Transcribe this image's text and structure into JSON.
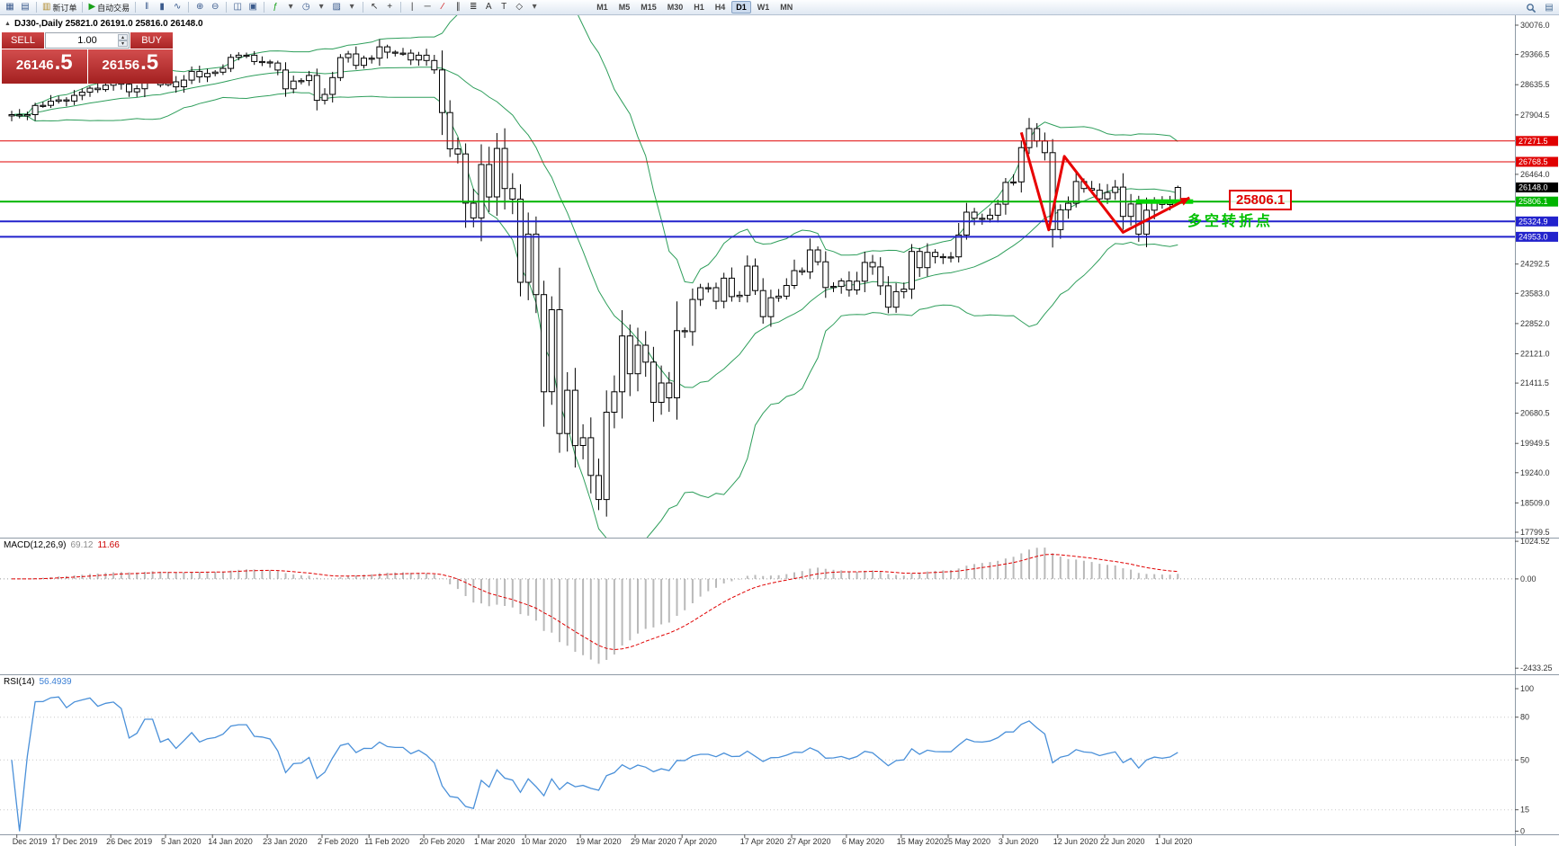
{
  "toolbar": {
    "items": [
      {
        "name": "new-chart",
        "glyph": "▦",
        "color": "#3a5a8c"
      },
      {
        "name": "chart-profiles",
        "glyph": "▤",
        "color": "#3a5a8c"
      },
      {
        "sep": true
      },
      {
        "name": "new-order",
        "glyph": "▥",
        "color": "#b0892a",
        "label": "新订单"
      },
      {
        "sep": true
      },
      {
        "name": "autotrading",
        "glyph": "▶",
        "color": "#18a018",
        "label": "自动交易"
      },
      {
        "sep": true
      },
      {
        "name": "bar-chart",
        "glyph": "‖",
        "color": "#3a5a8c"
      },
      {
        "name": "candlestick-chart",
        "glyph": "▮",
        "color": "#3a5a8c"
      },
      {
        "name": "line-chart",
        "glyph": "∿",
        "color": "#3a5a8c"
      },
      {
        "sep": true
      },
      {
        "name": "zoom-in",
        "glyph": "⊕",
        "color": "#3a5a8c"
      },
      {
        "name": "zoom-out",
        "glyph": "⊖",
        "color": "#3a5a8c"
      },
      {
        "sep": true
      },
      {
        "name": "tile-windows",
        "glyph": "◫",
        "color": "#3a5a8c"
      },
      {
        "name": "cascade-windows",
        "glyph": "▣",
        "color": "#3a5a8c"
      },
      {
        "sep": true
      },
      {
        "name": "indicators",
        "glyph": "ƒ",
        "color": "#18a018"
      },
      {
        "name": "indicators-dropdown",
        "glyph": "▾",
        "color": "#555555"
      },
      {
        "name": "periods",
        "glyph": "◷",
        "color": "#3a5a8c"
      },
      {
        "name": "periods-dropdown",
        "glyph": "▾",
        "color": "#555555"
      },
      {
        "name": "templates",
        "glyph": "▨",
        "color": "#3a5a8c"
      },
      {
        "name": "templates-dropdown",
        "glyph": "▾",
        "color": "#555555"
      },
      {
        "sep": true
      },
      {
        "name": "cursor",
        "glyph": "↖",
        "color": "#333333"
      },
      {
        "name": "crosshair",
        "glyph": "+",
        "color": "#333333"
      },
      {
        "sep": true
      },
      {
        "name": "vertical-line",
        "glyph": "|",
        "color": "#333333"
      },
      {
        "name": "horizontal-line",
        "glyph": "─",
        "color": "#333333"
      },
      {
        "name": "trendline",
        "glyph": "∕",
        "color": "#cc0000"
      },
      {
        "name": "equidistant-channel",
        "glyph": "∥",
        "color": "#333333"
      },
      {
        "name": "fibonacci-retracement",
        "glyph": "≣",
        "color": "#333333"
      },
      {
        "name": "text",
        "glyph": "A",
        "color": "#333333"
      },
      {
        "name": "text-label",
        "glyph": "T",
        "color": "#333333"
      },
      {
        "name": "arrows",
        "glyph": "◇",
        "color": "#333333"
      },
      {
        "name": "arrows-dropdown",
        "glyph": "▾",
        "color": "#555555"
      }
    ],
    "timeframes": [
      "M1",
      "M5",
      "M15",
      "M30",
      "H1",
      "H4",
      "D1",
      "W1",
      "MN"
    ],
    "active_timeframe": "D1"
  },
  "symbol_info": {
    "collapse_glyph": "▲",
    "text": "DJ30-,Daily  25821.0 26191.0 25816.0 26148.0"
  },
  "trade_panel": {
    "sell_label": "SELL",
    "buy_label": "BUY",
    "volume": "1.00",
    "spin_up_glyph": "▴",
    "spin_down_glyph": "▾",
    "sell_main": "26146",
    "sell_frac": ".5",
    "buy_main": "26156",
    "buy_frac": ".5"
  },
  "annotations": {
    "turning_point_text": "多空转折点",
    "price_callout": "25806.1",
    "zigzag": [
      [
        129,
        27480
      ],
      [
        132.5,
        25120
      ],
      [
        134.5,
        26900
      ],
      [
        142,
        25060
      ],
      [
        150.5,
        25900
      ]
    ],
    "highlight_segment": {
      "price": 25806.1,
      "from_bar": 144,
      "to_bar": 151.3
    }
  },
  "price_scale": {
    "ticks": [
      "30076.0",
      "29366.5",
      "28635.5",
      "27904.5",
      "26464.0",
      "24292.5",
      "23583.0",
      "22852.0",
      "22121.0",
      "21411.5",
      "20680.5",
      "19949.5",
      "19240.0",
      "18509.0",
      "17799.5"
    ],
    "tags": [
      {
        "value": "27271.5",
        "color": "#e00000"
      },
      {
        "value": "26768.5",
        "color": "#e00000"
      },
      {
        "value": "26148.0",
        "color": "#000000"
      },
      {
        "value": "25806.1",
        "color": "#00b400"
      },
      {
        "value": "25324.9",
        "color": "#2222cc"
      },
      {
        "value": "24953.0",
        "color": "#2222cc"
      }
    ]
  },
  "levels": [
    {
      "price": 27271.5,
      "color": "#e00000",
      "width": 1
    },
    {
      "price": 26768.5,
      "color": "#e00000",
      "width": 1
    },
    {
      "price": 25806.1,
      "color": "#00b400",
      "width": 2
    },
    {
      "price": 25324.9,
      "color": "#2222cc",
      "width": 2
    },
    {
      "price": 24953.0,
      "color": "#2222cc",
      "width": 2
    }
  ],
  "macd_panel": {
    "name": "MACD(12,26,9)",
    "main_value": "69.12",
    "signal_value": "11.66",
    "scale": [
      "1024.52",
      "0.00",
      "-2433.25"
    ],
    "scale_values": [
      1024.52,
      0,
      -2433.25
    ]
  },
  "rsi_panel": {
    "name": "RSI(14)",
    "value": "56.4939",
    "scale_values": [
      100,
      80,
      50,
      15,
      0
    ]
  },
  "date_axis": {
    "labels": [
      "Dec 2019",
      "17 Dec 2019",
      "26 Dec 2019",
      "5 Jan 2020",
      "14 Jan 2020",
      "23 Jan 2020",
      "2 Feb 2020",
      "11 Feb 2020",
      "20 Feb 2020",
      "1 Mar 2020",
      "10 Mar 2020",
      "19 Mar 2020",
      "29 Mar 2020",
      "7 Apr 2020",
      "17 Apr 2020",
      "27 Apr 2020",
      "6 May 2020",
      "15 May 2020",
      "25 May 2020",
      "3 Jun 2020",
      "12 Jun 2020",
      "22 Jun 2020",
      "1 Jul 2020"
    ],
    "bar_index": [
      1,
      6,
      13,
      20,
      26,
      33,
      40,
      46,
      53,
      60,
      66,
      73,
      80,
      86,
      94,
      100,
      107,
      114,
      120,
      127,
      134,
      140,
      147
    ]
  },
  "colors": {
    "accent_red": "#e80000",
    "band_green": "#2e9e5b",
    "highlight_green": "#00d400",
    "macd_hist": "#b9b9b9",
    "macd_signal": "#e00000",
    "rsi_line": "#4a90d9",
    "candle_stroke": "#000000"
  },
  "chart_data": {
    "type": "candlestick",
    "symbol": "DJ30-",
    "timeframe": "Daily",
    "current_bar": {
      "open": 25821.0,
      "high": 26191.0,
      "low": 25816.0,
      "close": 26148.0
    },
    "y_axis_range": [
      17799.5,
      30076.0
    ],
    "overlays": [
      "Bollinger Bands (green)"
    ],
    "indicators": [
      "MACD(12,26,9)",
      "RSI(14)"
    ],
    "closes": [
      27910,
      27881,
      27911,
      28132,
      28135,
      28235,
      28267,
      28239,
      28377,
      28455,
      28551,
      28516,
      28621,
      28676,
      28645,
      28462,
      28538,
      28869,
      28869,
      28635,
      28704,
      28583,
      28745,
      28957,
      28824,
      28907,
      28939,
      29030,
      29297,
      29348,
      29348,
      29196,
      29186,
      29160,
      28990,
      28536,
      28723,
      28734,
      28859,
      28256,
      28400,
      28808,
      29291,
      29380,
      29103,
      29277,
      29276,
      29551,
      29423,
      29398,
      29398,
      29233,
      29348,
      29220,
      28993,
      27961,
      27081,
      26958,
      25767,
      25409,
      26703,
      25917,
      27091,
      26121,
      25865,
      23851,
      25018,
      23553,
      21201,
      23186,
      20189,
      21237,
      19899,
      20087,
      19174,
      18592,
      20705,
      21200,
      22552,
      21637,
      22327,
      21917,
      20944,
      21413,
      21053,
      22680,
      22654,
      23434,
      23719,
      23719,
      23391,
      23950,
      23504,
      23537,
      24242,
      23650,
      23019,
      23476,
      23515,
      23775,
      24134,
      24102,
      24634,
      24346,
      23724,
      23750,
      23883,
      23665,
      23876,
      24331,
      24222,
      23765,
      23248,
      23625,
      23685,
      24597,
      24206,
      24576,
      24474,
      24465,
      24465,
      24995,
      25548,
      25401,
      25383,
      25475,
      25743,
      26270,
      26282,
      27111,
      27572,
      27272,
      26990,
      25128,
      25606,
      25763,
      26290,
      26120,
      26080,
      25871,
      26025,
      26156,
      25446,
      25746,
      25016,
      25596,
      25813,
      25735,
      25821,
      26148
    ]
  }
}
